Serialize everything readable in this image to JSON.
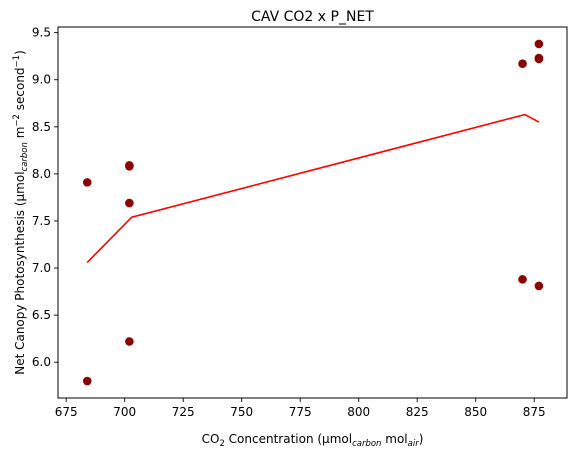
{
  "chart_data": {
    "type": "scatter",
    "title": "CAV CO2 x P_NET",
    "xlabel": {
      "parts": [
        {
          "t": "CO",
          "s": "n"
        },
        {
          "t": "2",
          "s": "sub-n"
        },
        {
          "t": " Concentration (µmol",
          "s": "n"
        },
        {
          "t": "carbon",
          "s": "sub"
        },
        {
          "t": " mol",
          "s": "n"
        },
        {
          "t": "air",
          "s": "sub"
        },
        {
          "t": ")",
          "s": "n"
        }
      ]
    },
    "ylabel": {
      "parts": [
        {
          "t": "Net Canopy Photosynthesis (µmol",
          "s": "n"
        },
        {
          "t": "carbon",
          "s": "sub"
        },
        {
          "t": " m",
          "s": "n"
        },
        {
          "t": "−2",
          "s": "sup"
        },
        {
          "t": " second",
          "s": "n"
        },
        {
          "t": "−1",
          "s": "sup"
        },
        {
          "t": ")",
          "s": "n"
        }
      ]
    },
    "xlim": [
      671.5,
      889.0
    ],
    "ylim": [
      5.62,
      9.56
    ],
    "xticks": [
      675,
      700,
      725,
      750,
      775,
      800,
      825,
      850,
      875
    ],
    "yticks": [
      6.0,
      6.5,
      7.0,
      7.5,
      8.0,
      8.5,
      9.0,
      9.5
    ],
    "ytick_labels": [
      "6.0",
      "6.5",
      "7.0",
      "7.5",
      "8.0",
      "8.5",
      "9.0",
      "9.5"
    ],
    "grid": false,
    "series": [
      {
        "kind": "scatter",
        "color": "#8b0000",
        "points": [
          [
            684,
            7.91
          ],
          [
            684,
            5.8
          ],
          [
            702,
            8.08
          ],
          [
            702,
            8.09
          ],
          [
            702,
            7.69
          ],
          [
            702,
            6.22
          ],
          [
            870,
            9.17
          ],
          [
            870,
            6.88
          ],
          [
            877,
            9.38
          ],
          [
            877,
            9.22
          ],
          [
            877,
            9.23
          ],
          [
            877,
            6.81
          ]
        ]
      },
      {
        "kind": "line",
        "color": "#ff0000",
        "points": [
          [
            684,
            7.06
          ],
          [
            703,
            7.54
          ],
          [
            871,
            8.63
          ],
          [
            877,
            8.55
          ]
        ]
      }
    ]
  }
}
